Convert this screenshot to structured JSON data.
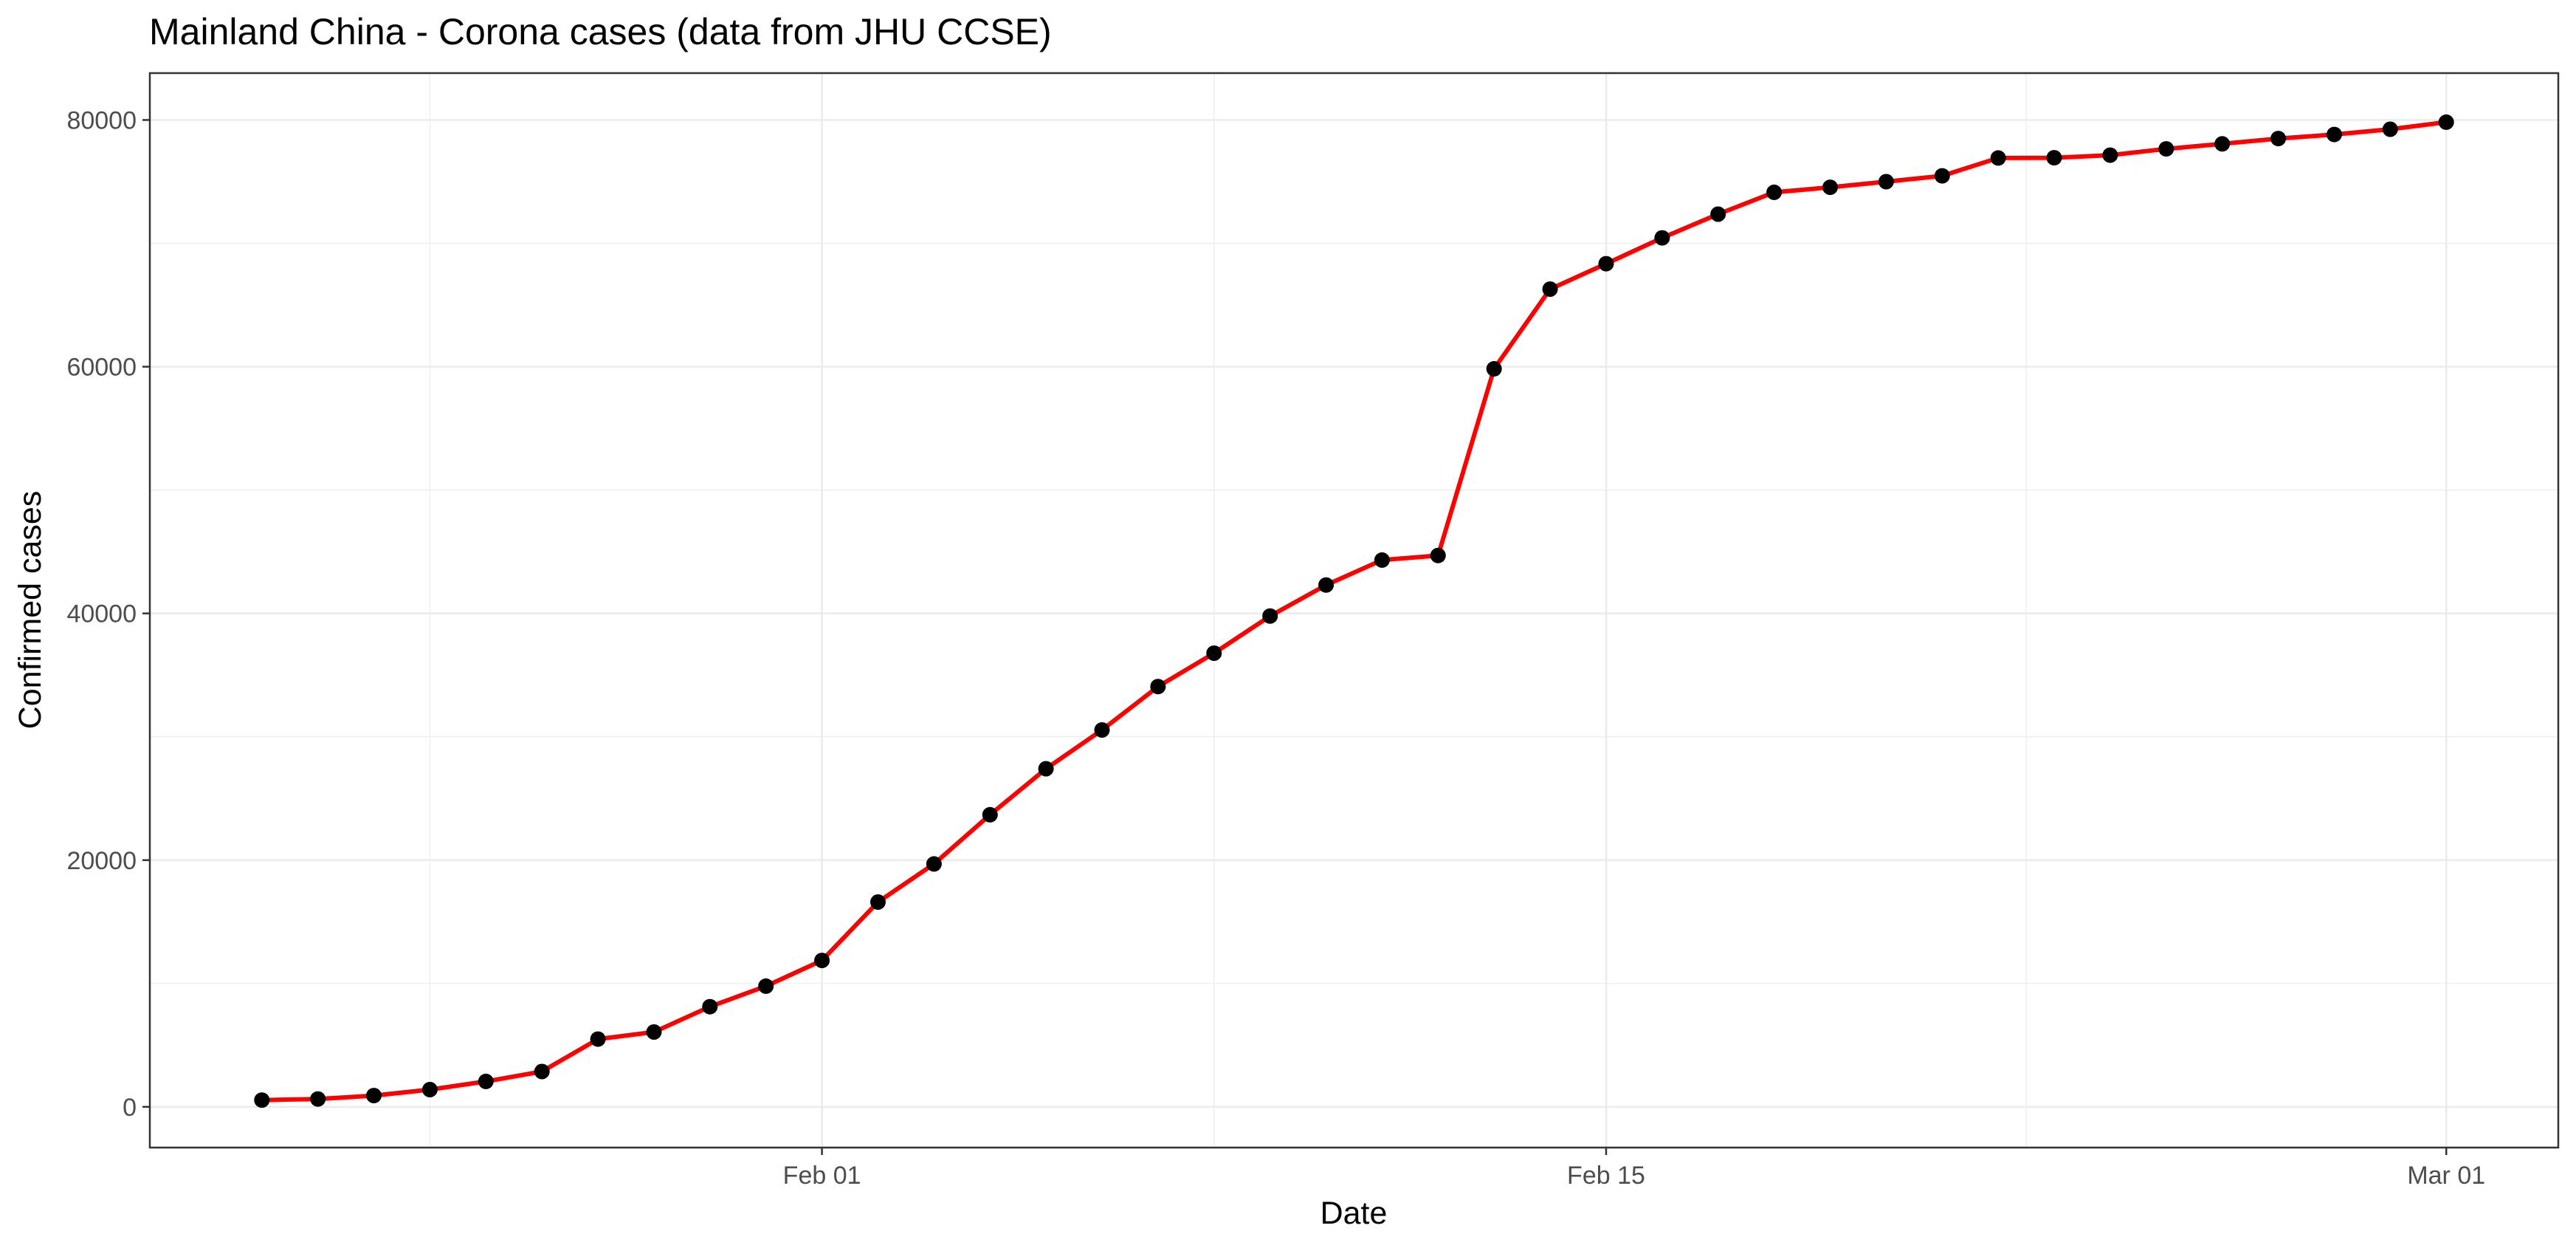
{
  "chart_data": {
    "type": "line",
    "title": "Mainland China - Corona cases (data from JHU CCSE)",
    "xlabel": "Date",
    "ylabel": "Confirmed cases",
    "x_ticks": [
      {
        "date": "2020-02-01",
        "label": "Feb 01"
      },
      {
        "date": "2020-02-15",
        "label": "Feb 15"
      },
      {
        "date": "2020-03-01",
        "label": "Mar 01"
      }
    ],
    "y_ticks": [
      0,
      20000,
      40000,
      60000,
      80000
    ],
    "x_range": [
      "2020-01-20",
      "2020-03-03"
    ],
    "ylim": [
      -3300,
      83800
    ],
    "grid": true,
    "colors": {
      "line": "#ff0000",
      "points": "#000000",
      "grid": "#ebebeb",
      "border": "#333333"
    },
    "series": [
      {
        "x": [
          "2020-01-22",
          "2020-01-23",
          "2020-01-24",
          "2020-01-25",
          "2020-01-26",
          "2020-01-27",
          "2020-01-28",
          "2020-01-29",
          "2020-01-30",
          "2020-01-31",
          "2020-02-01",
          "2020-02-02",
          "2020-02-03",
          "2020-02-04",
          "2020-02-05",
          "2020-02-06",
          "2020-02-07",
          "2020-02-08",
          "2020-02-09",
          "2020-02-10",
          "2020-02-11",
          "2020-02-12",
          "2020-02-13",
          "2020-02-14",
          "2020-02-15",
          "2020-02-16",
          "2020-02-17",
          "2020-02-18",
          "2020-02-19",
          "2020-02-20",
          "2020-02-21",
          "2020-02-22",
          "2020-02-23",
          "2020-02-24",
          "2020-02-25",
          "2020-02-26",
          "2020-02-27",
          "2020-02-28",
          "2020-02-29",
          "2020-03-01"
        ],
        "values": [
          547,
          639,
          916,
          1399,
          2062,
          2863,
          5494,
          6070,
          8124,
          9783,
          11871,
          16607,
          19693,
          23680,
          27409,
          30553,
          34075,
          36778,
          39790,
          42306,
          44327,
          44699,
          59832,
          66292,
          68347,
          70446,
          72364,
          74139,
          74546,
          74999,
          75472,
          76922,
          76938,
          77152,
          77660,
          78065,
          78498,
          78824,
          79251,
          79826
        ]
      }
    ]
  }
}
